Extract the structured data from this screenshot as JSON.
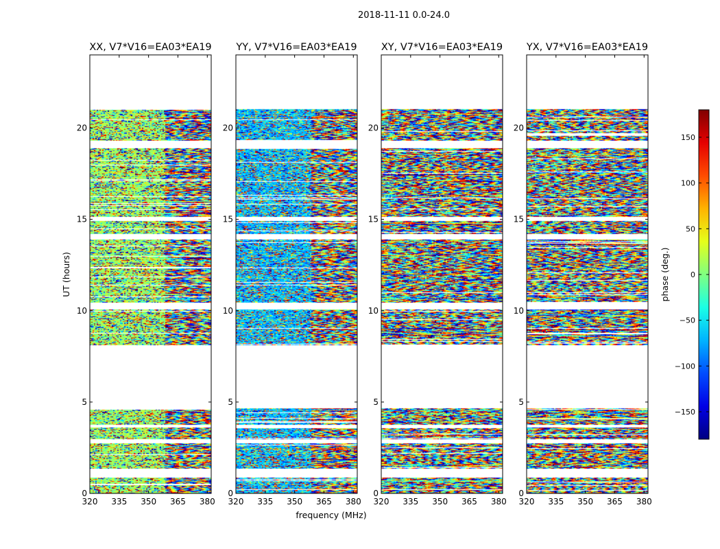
{
  "figure": {
    "suptitle": "2018-11-11 0.0-24.0",
    "xlabel": "frequency (MHz)",
    "ylabel": "UT (hours)",
    "colorbar_label": "phase (deg.)"
  },
  "chart_data": {
    "type": "heatmap",
    "x_range": [
      320,
      382
    ],
    "y_range": [
      0,
      24
    ],
    "x_ticks": [
      320,
      335,
      350,
      365,
      380
    ],
    "y_ticks": [
      0,
      5,
      10,
      15,
      20
    ],
    "color_range": [
      -180,
      180
    ],
    "colorbar_ticks": [
      150,
      100,
      50,
      0,
      -50,
      -100,
      -150
    ],
    "colormap": "jet",
    "grid": false,
    "panels": [
      {
        "title": "XX, V7*V16=EA03*EA19",
        "polarization": "XX",
        "smooth": 0.55,
        "base_phase": 10
      },
      {
        "title": "YY, V7*V16=EA03*EA19",
        "polarization": "YY",
        "smooth": 0.55,
        "base_phase": -70
      },
      {
        "title": "XY, V7*V16=EA03*EA19",
        "polarization": "XY",
        "smooth": 0.05,
        "base_phase": 0
      },
      {
        "title": "YX, V7*V16=EA03*EA19",
        "polarization": "YX",
        "smooth": 0.05,
        "base_phase": 0
      }
    ],
    "data_time_ranges": [
      [
        0.0,
        0.85
      ],
      [
        1.35,
        2.75
      ],
      [
        2.95,
        3.6
      ],
      [
        3.75,
        4.65
      ],
      [
        8.1,
        10.05
      ],
      [
        10.45,
        13.9
      ],
      [
        14.2,
        14.9
      ],
      [
        15.15,
        18.9
      ],
      [
        19.3,
        21.05
      ]
    ]
  }
}
